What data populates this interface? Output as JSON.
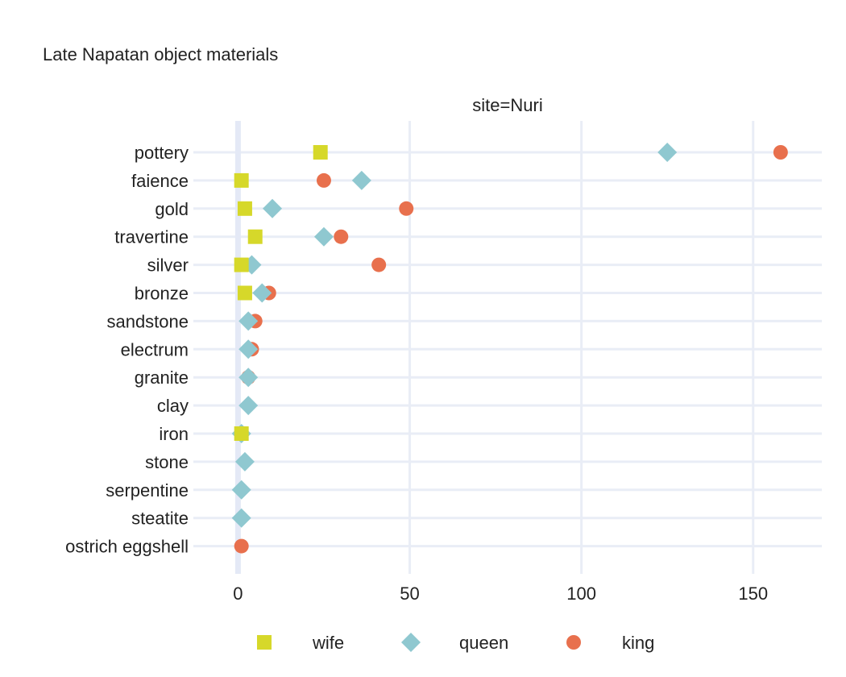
{
  "chart_data": {
    "type": "scatter",
    "title": "Late Napatan object materials",
    "facet_label": "site=Nuri",
    "xlabel": "",
    "ylabel": "",
    "xlim": [
      -13,
      170
    ],
    "x_ticks": [
      0,
      50,
      100,
      150
    ],
    "grid": true,
    "legend_position": "bottom",
    "categories": [
      "pottery",
      "faience",
      "gold",
      "travertine",
      "silver",
      "bronze",
      "sandstone",
      "electrum",
      "granite",
      "clay",
      "iron",
      "stone",
      "serpentine",
      "steatite",
      "ostrich eggshell"
    ],
    "series": [
      {
        "name": "king",
        "marker": "circle",
        "color": "#e8704d",
        "points": [
          {
            "category": "pottery",
            "value": 158
          },
          {
            "category": "faience",
            "value": 25
          },
          {
            "category": "gold",
            "value": 49
          },
          {
            "category": "travertine",
            "value": 30
          },
          {
            "category": "silver",
            "value": 41
          },
          {
            "category": "bronze",
            "value": 9
          },
          {
            "category": "sandstone",
            "value": 5
          },
          {
            "category": "electrum",
            "value": 4
          },
          {
            "category": "granite",
            "value": 3
          },
          {
            "category": "ostrich eggshell",
            "value": 1
          }
        ]
      },
      {
        "name": "queen",
        "marker": "diamond",
        "color": "#8fc8d0",
        "points": [
          {
            "category": "pottery",
            "value": 125
          },
          {
            "category": "faience",
            "value": 36
          },
          {
            "category": "gold",
            "value": 10
          },
          {
            "category": "travertine",
            "value": 25
          },
          {
            "category": "silver",
            "value": 4
          },
          {
            "category": "bronze",
            "value": 7
          },
          {
            "category": "sandstone",
            "value": 3
          },
          {
            "category": "electrum",
            "value": 3
          },
          {
            "category": "granite",
            "value": 3
          },
          {
            "category": "clay",
            "value": 3
          },
          {
            "category": "iron",
            "value": 1
          },
          {
            "category": "stone",
            "value": 2
          },
          {
            "category": "serpentine",
            "value": 1
          },
          {
            "category": "steatite",
            "value": 1
          }
        ]
      },
      {
        "name": "wife",
        "marker": "square",
        "color": "#d6d82a",
        "points": [
          {
            "category": "pottery",
            "value": 24
          },
          {
            "category": "faience",
            "value": 1
          },
          {
            "category": "gold",
            "value": 2
          },
          {
            "category": "travertine",
            "value": 5
          },
          {
            "category": "silver",
            "value": 1
          },
          {
            "category": "bronze",
            "value": 2
          },
          {
            "category": "iron",
            "value": 1
          }
        ]
      }
    ],
    "legend_order": [
      "wife",
      "queen",
      "king"
    ]
  }
}
